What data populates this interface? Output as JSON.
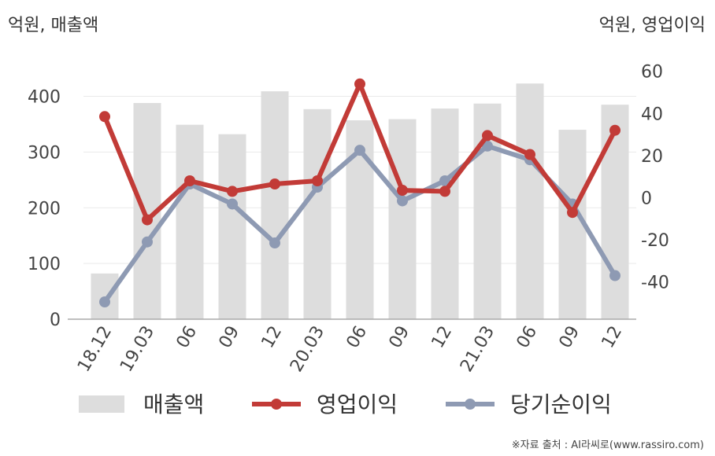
{
  "chart_data": {
    "type": "bar+line",
    "left_axis_unit": "억원, 매출액",
    "right_axis_unit": "억원, 영업이익",
    "categories": [
      "18.12",
      "19.03",
      "06",
      "09",
      "12",
      "20.03",
      "06",
      "09",
      "12",
      "21.03",
      "06",
      "09",
      "12"
    ],
    "left_axis": {
      "ylim": [
        0,
        460
      ],
      "ticks": [
        0,
        100,
        200,
        300,
        400
      ]
    },
    "right_axis": {
      "ylim": [
        -57.7,
        64
      ],
      "ticks": [
        -40,
        -20,
        0,
        20,
        40,
        60
      ]
    },
    "series": [
      {
        "name": "매출액",
        "kind": "bar",
        "axis": "left",
        "color": "#dddddd",
        "values": [
          82,
          388,
          349,
          332,
          409,
          377,
          357,
          359,
          378,
          387,
          423,
          340,
          385
        ]
      },
      {
        "name": "영업이익",
        "kind": "line",
        "axis": "right",
        "color": "#c23b37",
        "values": [
          38.5,
          -10.5,
          8.0,
          3.0,
          6.5,
          8.0,
          54.0,
          3.5,
          3.0,
          29.5,
          20.5,
          -7.0,
          32.0
        ]
      },
      {
        "name": "당기순이익",
        "kind": "line",
        "axis": "right",
        "color": "#8e9ab3",
        "values": [
          -49.5,
          -21.0,
          6.5,
          -3.0,
          -21.5,
          5.0,
          22.5,
          -1.5,
          8.0,
          24.5,
          18.0,
          -3.0,
          -37.0
        ]
      }
    ],
    "gridlines": true,
    "legend_position": "bottom"
  },
  "source_text": "※자료 출처 : AI라씨로(www.rassiro.com)"
}
